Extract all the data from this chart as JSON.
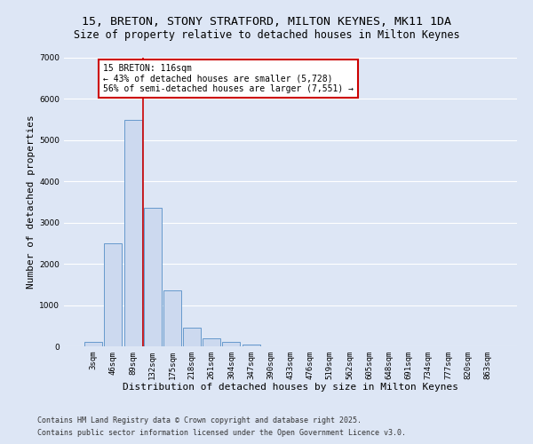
{
  "title_line1": "15, BRETON, STONY STRATFORD, MILTON KEYNES, MK11 1DA",
  "title_line2": "Size of property relative to detached houses in Milton Keynes",
  "xlabel": "Distribution of detached houses by size in Milton Keynes",
  "ylabel": "Number of detached properties",
  "categories": [
    "3sqm",
    "46sqm",
    "89sqm",
    "132sqm",
    "175sqm",
    "218sqm",
    "261sqm",
    "304sqm",
    "347sqm",
    "390sqm",
    "433sqm",
    "476sqm",
    "519sqm",
    "562sqm",
    "605sqm",
    "648sqm",
    "691sqm",
    "734sqm",
    "777sqm",
    "820sqm",
    "863sqm"
  ],
  "bar_values": [
    100,
    2500,
    5500,
    3350,
    1350,
    450,
    200,
    100,
    50,
    0,
    0,
    0,
    0,
    0,
    0,
    0,
    0,
    0,
    0,
    0,
    0
  ],
  "bar_color": "#ccd9ef",
  "bar_edge_color": "#6699cc",
  "vline_color": "#cc0000",
  "vline_x_index": 2,
  "ylim": [
    0,
    7000
  ],
  "yticks": [
    0,
    1000,
    2000,
    3000,
    4000,
    5000,
    6000,
    7000
  ],
  "annotation_text": "15 BRETON: 116sqm\n← 43% of detached houses are smaller (5,728)\n56% of semi-detached houses are larger (7,551) →",
  "annotation_box_facecolor": "#ffffff",
  "annotation_box_edgecolor": "#cc0000",
  "footer_line1": "Contains HM Land Registry data © Crown copyright and database right 2025.",
  "footer_line2": "Contains public sector information licensed under the Open Government Licence v3.0.",
  "background_color": "#dde6f5",
  "grid_color": "#ffffff",
  "title_fontsize": 9.5,
  "subtitle_fontsize": 8.5,
  "axis_label_fontsize": 8,
  "tick_fontsize": 6.5,
  "annotation_fontsize": 7,
  "footer_fontsize": 6
}
